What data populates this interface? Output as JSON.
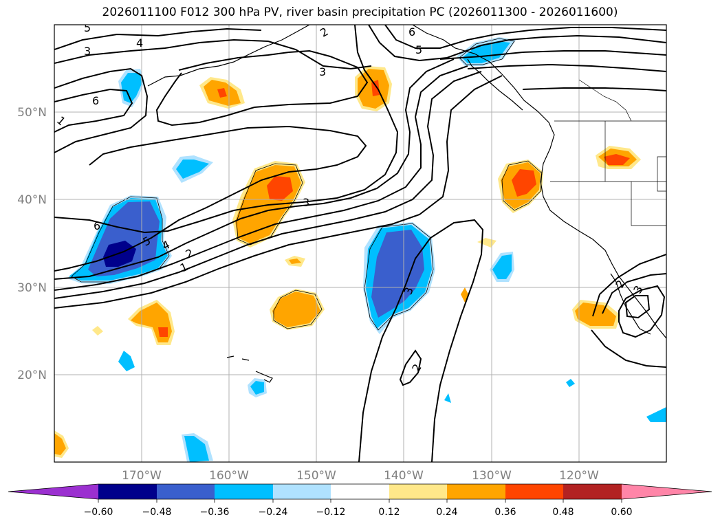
{
  "title": "2026011100 F012 300 hPa PV, river basin precipitation PC (2026011300 - 2026011600)",
  "map": {
    "lat_labels": [
      "50°N",
      "40°N",
      "30°N",
      "20°N"
    ],
    "lon_labels": [
      "170°W",
      "160°W",
      "150°W",
      "140°W",
      "130°W",
      "120°W"
    ],
    "lat_range": [
      10,
      60
    ],
    "lon_range": [
      -180,
      -110
    ],
    "pv_contour_labels": [
      "5",
      "3",
      "4",
      "6",
      "1",
      "3",
      "2",
      "6",
      "5",
      "3",
      "6",
      "5",
      "4",
      "2",
      "1",
      "3",
      "2",
      "2",
      "3"
    ]
  },
  "colorbar": {
    "ticks": [
      "−0.60",
      "−0.48",
      "−0.36",
      "−0.24",
      "−0.12",
      "0.12",
      "0.24",
      "0.36",
      "0.48",
      "0.60"
    ],
    "colors": [
      "#9b30d0",
      "#00008b",
      "#3a5fcd",
      "#00bfff",
      "#b0e2ff",
      "#ffffff",
      "#ffe88a",
      "#ffa500",
      "#ff4500",
      "#b22222",
      "#ff85a8"
    ],
    "extend": "both"
  }
}
